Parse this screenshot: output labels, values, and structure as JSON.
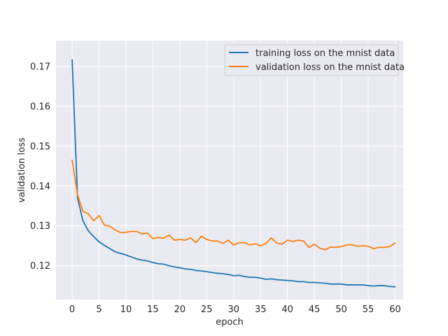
{
  "chart_data": {
    "type": "line",
    "xlabel": "epoch",
    "ylabel": "validation loss",
    "xlim": [
      -3,
      61.5
    ],
    "ylim": [
      0.1115,
      0.1765
    ],
    "xticks": [
      0,
      5,
      10,
      15,
      20,
      25,
      30,
      35,
      40,
      45,
      50,
      55,
      60
    ],
    "yticks": [
      0.12,
      0.13,
      0.14,
      0.15,
      0.16,
      0.17
    ],
    "grid": true,
    "legend_position": "top-right",
    "x": [
      0,
      1,
      2,
      3,
      4,
      5,
      6,
      7,
      8,
      9,
      10,
      11,
      12,
      13,
      14,
      15,
      16,
      17,
      18,
      19,
      20,
      21,
      22,
      23,
      24,
      25,
      26,
      27,
      28,
      29,
      30,
      31,
      32,
      33,
      34,
      35,
      36,
      37,
      38,
      39,
      40,
      41,
      42,
      43,
      44,
      45,
      46,
      47,
      48,
      49,
      50,
      51,
      52,
      53,
      54,
      55,
      56,
      57,
      58,
      59,
      60
    ],
    "series": [
      {
        "name": "training loss on the mnist data",
        "color": "#1f77b4",
        "values": [
          0.1717,
          0.137,
          0.1313,
          0.1288,
          0.1273,
          0.126,
          0.1251,
          0.1243,
          0.1235,
          0.1231,
          0.1227,
          0.1222,
          0.1217,
          0.1214,
          0.1212,
          0.1208,
          0.1205,
          0.1204,
          0.12,
          0.1197,
          0.1195,
          0.1192,
          0.1191,
          0.1188,
          0.1187,
          0.1185,
          0.1183,
          0.1181,
          0.118,
          0.1178,
          0.1175,
          0.1176,
          0.1173,
          0.1171,
          0.1171,
          0.1169,
          0.1166,
          0.1167,
          0.1165,
          0.1164,
          0.1163,
          0.1162,
          0.116,
          0.116,
          0.1158,
          0.1158,
          0.1157,
          0.1156,
          0.1154,
          0.1154,
          0.1154,
          0.1152,
          0.1152,
          0.1152,
          0.1152,
          0.115,
          0.1149,
          0.115,
          0.115,
          0.1148,
          0.1147
        ]
      },
      {
        "name": "validation loss on the mnist data",
        "color": "#ff7f0e",
        "values": [
          0.1465,
          0.1378,
          0.1337,
          0.133,
          0.1313,
          0.1326,
          0.1302,
          0.1299,
          0.129,
          0.1283,
          0.1284,
          0.1286,
          0.1286,
          0.128,
          0.1282,
          0.1268,
          0.1271,
          0.1269,
          0.1277,
          0.1264,
          0.1266,
          0.1264,
          0.127,
          0.1258,
          0.1274,
          0.1266,
          0.1262,
          0.1262,
          0.1256,
          0.1264,
          0.1252,
          0.1258,
          0.1258,
          0.1252,
          0.1255,
          0.125,
          0.1256,
          0.127,
          0.1257,
          0.1254,
          0.1264,
          0.1261,
          0.1264,
          0.1262,
          0.1246,
          0.1254,
          0.1244,
          0.124,
          0.1247,
          0.1246,
          0.1248,
          0.1252,
          0.1253,
          0.1249,
          0.125,
          0.1249,
          0.1243,
          0.1246,
          0.1246,
          0.1248,
          0.1257
        ]
      }
    ]
  }
}
